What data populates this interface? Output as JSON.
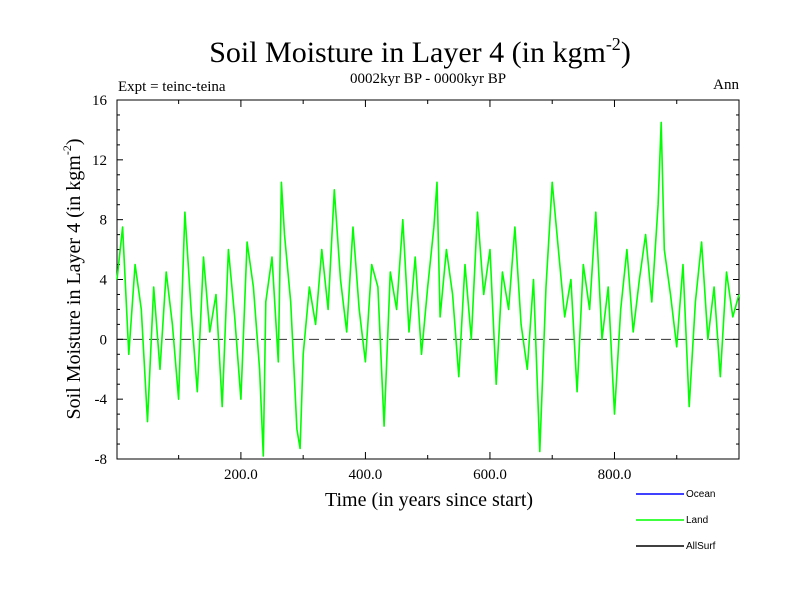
{
  "chart_data": {
    "type": "line",
    "title": "Soil Moisture in Layer 4 (in kgm",
    "title_sup": "-2",
    "title_close": ")",
    "subtitle": "0002kyr BP - 0000kyr BP",
    "left_label": "Expt = teinc-teina",
    "right_label": "Ann",
    "xlabel": "Time (in years since start)",
    "ylabel": "Soil Moisture in Layer 4 (in kgm",
    "ylabel_sup": "-2",
    "ylabel_close": ")",
    "xlim": [
      1,
      1000
    ],
    "ylim": [
      -8,
      16
    ],
    "xticks": [
      200,
      400,
      600,
      800
    ],
    "xtick_labels": [
      "200.0",
      "400.0",
      "600.0",
      "800.0"
    ],
    "yticks": [
      -8,
      -4,
      0,
      4,
      8,
      12,
      16
    ],
    "ytick_labels": [
      "-8",
      "-4",
      "0",
      "4",
      "8",
      "12",
      "16"
    ],
    "zero_line": 0,
    "legend": [
      {
        "name": "Ocean",
        "color": "#0000ff"
      },
      {
        "name": "Land",
        "color": "#00ff00"
      },
      {
        "name": "AllSurf",
        "color": "#000000"
      }
    ],
    "series": [
      {
        "name": "Land",
        "color": "#00ff00",
        "x": [
          1,
          10,
          20,
          30,
          40,
          50,
          60,
          70,
          80,
          90,
          100,
          110,
          120,
          130,
          140,
          150,
          160,
          170,
          180,
          190,
          200,
          210,
          220,
          230,
          236,
          240,
          250,
          260,
          265,
          270,
          280,
          290,
          295,
          300,
          310,
          320,
          330,
          340,
          350,
          360,
          370,
          380,
          390,
          400,
          410,
          420,
          430,
          440,
          450,
          460,
          470,
          480,
          490,
          500,
          510,
          515,
          520,
          530,
          540,
          550,
          560,
          570,
          580,
          590,
          600,
          610,
          620,
          630,
          640,
          650,
          660,
          670,
          680,
          690,
          700,
          710,
          720,
          730,
          740,
          750,
          760,
          770,
          780,
          790,
          800,
          810,
          820,
          830,
          840,
          850,
          860,
          870,
          875,
          880,
          890,
          900,
          910,
          920,
          930,
          940,
          950,
          960,
          970,
          980,
          990,
          1000
        ],
        "values": [
          4.0,
          7.5,
          -1.0,
          5.0,
          2.0,
          -5.5,
          3.5,
          -2.0,
          4.5,
          1.0,
          -4.0,
          8.5,
          2.0,
          -3.5,
          5.5,
          0.5,
          3.0,
          -4.5,
          6.0,
          1.5,
          -4.0,
          6.5,
          3.5,
          -2.0,
          -7.8,
          2.5,
          5.5,
          -1.5,
          10.5,
          7.0,
          2.5,
          -6.0,
          -7.3,
          -1.0,
          3.5,
          1.0,
          6.0,
          2.0,
          10.0,
          4.0,
          0.5,
          7.5,
          2.0,
          -1.5,
          5.0,
          3.5,
          -5.8,
          4.5,
          2.0,
          8.0,
          0.5,
          5.5,
          -1.0,
          3.5,
          7.5,
          10.5,
          1.5,
          6.0,
          3.0,
          -2.5,
          5.0,
          0.0,
          8.5,
          3.0,
          6.0,
          -3.0,
          4.5,
          2.0,
          7.5,
          1.0,
          -2.0,
          4.0,
          -7.5,
          3.5,
          10.5,
          6.0,
          1.5,
          4.0,
          -3.5,
          5.0,
          2.0,
          8.5,
          0.0,
          3.5,
          -5.0,
          2.0,
          6.0,
          0.5,
          4.0,
          7.0,
          2.5,
          9.0,
          14.5,
          6.0,
          3.0,
          -0.5,
          5.0,
          -4.5,
          2.5,
          6.5,
          0.0,
          3.5,
          -2.5,
          4.5,
          1.5,
          3.0
        ]
      }
    ]
  }
}
